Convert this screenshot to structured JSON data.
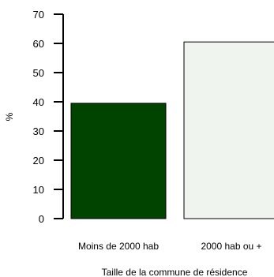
{
  "chart_data": {
    "type": "bar",
    "categories": [
      "Moins de 2000 hab",
      "2000 hab ou +"
    ],
    "values": [
      39.5,
      60.5
    ],
    "bar_colors": [
      "#004400",
      "#eff4ef"
    ],
    "bar_outline": "#000000",
    "ylabel": "%",
    "xlabel": "Taille de la commune de résidence",
    "ylim": [
      0,
      70
    ],
    "yticks": [
      "0",
      "10",
      "20",
      "30",
      "40",
      "50",
      "60",
      "70"
    ],
    "grid": false
  }
}
